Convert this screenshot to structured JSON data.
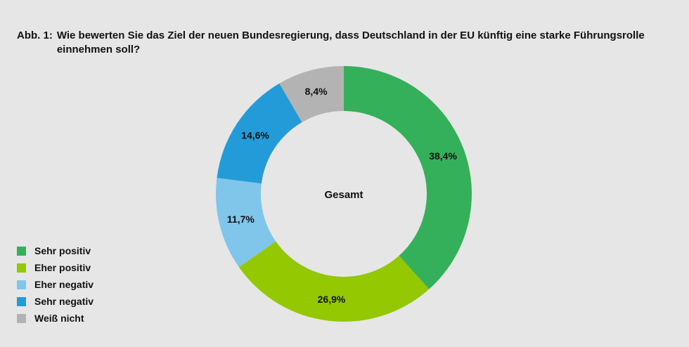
{
  "title_prefix": "Abb. 1:",
  "title_text": "Wie bewerten Sie das Ziel der neuen Bundesregierung, dass Deutschland in der EU künftig eine starke Führungsrolle einnehmen soll?",
  "chart_data": {
    "type": "pie",
    "variant": "donut",
    "center_label": "Gesamt",
    "legend_position": "bottom-left",
    "slices": [
      {
        "name": "Sehr positiv",
        "value": 38.4,
        "label": "38,4%",
        "color": "#35b05a"
      },
      {
        "name": "Eher positiv",
        "value": 26.9,
        "label": "26,9%",
        "color": "#94c800"
      },
      {
        "name": "Eher negativ",
        "value": 11.7,
        "label": "11,7%",
        "color": "#7fc6ea"
      },
      {
        "name": "Sehr negativ",
        "value": 14.6,
        "label": "14,6%",
        "color": "#249bd9"
      },
      {
        "name": "Weiß nicht",
        "value": 8.4,
        "label": "8,4%",
        "color": "#b3b3b3"
      }
    ]
  }
}
